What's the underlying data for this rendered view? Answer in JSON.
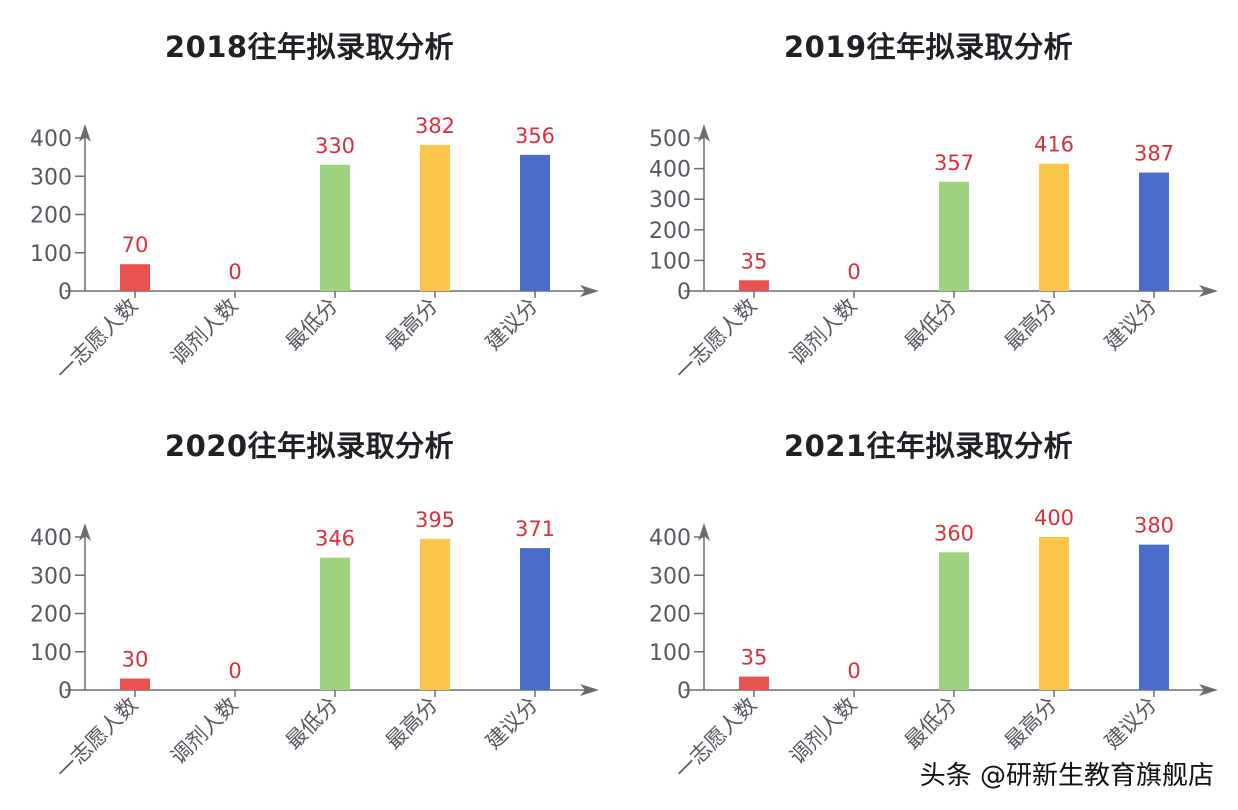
{
  "watermark": "头条 @研新生教育旗舰店",
  "colors": {
    "bars": [
      "#e8534f",
      "#9ed47f",
      "#9ed47f",
      "#fbc54b",
      "#4a6cc9"
    ],
    "bar_by_category": {
      "一志愿人数": "#e8534f",
      "调剂人数": "#e8534f",
      "最低分": "#9ed47f",
      "最高分": "#fbc54b",
      "建议分": "#4a6cc9"
    },
    "value_label": "#d9303a",
    "axis": "#6e6a73",
    "tick_label": "#5a5660",
    "title": "#222026"
  },
  "chart_data": [
    {
      "type": "bar",
      "title": "2018往年拟录取分析",
      "categories": [
        "一志愿人数",
        "调剂人数",
        "最低分",
        "最高分",
        "建议分"
      ],
      "values": [
        70,
        0,
        330,
        382,
        356
      ],
      "xlabel": "",
      "ylabel": "",
      "yticks": [
        0,
        100,
        200,
        300,
        400
      ],
      "ylim": [
        0,
        430
      ],
      "grid": false
    },
    {
      "type": "bar",
      "title": "2019往年拟录取分析",
      "categories": [
        "一志愿人数",
        "调剂人数",
        "最低分",
        "最高分",
        "建议分"
      ],
      "values": [
        35,
        0,
        357,
        416,
        387
      ],
      "xlabel": "",
      "ylabel": "",
      "yticks": [
        0,
        100,
        200,
        300,
        400,
        500
      ],
      "ylim": [
        0,
        530
      ],
      "grid": false
    },
    {
      "type": "bar",
      "title": "2020往年拟录取分析",
      "categories": [
        "一志愿人数",
        "调剂人数",
        "最低分",
        "最高分",
        "建议分"
      ],
      "values": [
        30,
        0,
        346,
        395,
        371
      ],
      "xlabel": "",
      "ylabel": "",
      "yticks": [
        0,
        100,
        200,
        300,
        400
      ],
      "ylim": [
        0,
        430
      ],
      "grid": false
    },
    {
      "type": "bar",
      "title": "2021往年拟录取分析",
      "categories": [
        "一志愿人数",
        "调剂人数",
        "最低分",
        "最高分",
        "建议分"
      ],
      "values": [
        35,
        0,
        360,
        400,
        380
      ],
      "xlabel": "",
      "ylabel": "",
      "yticks": [
        0,
        100,
        200,
        300,
        400
      ],
      "ylim": [
        0,
        430
      ],
      "grid": false
    }
  ]
}
